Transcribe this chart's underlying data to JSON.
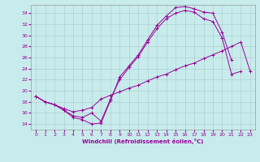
{
  "xlabel": "Windchill (Refroidissement éolien,°C)",
  "background_color": "#c8ecec",
  "grid_color": "#b0d0d0",
  "line_color": "#990099",
  "xlim": [
    -0.5,
    23.5
  ],
  "ylim": [
    13,
    35.5
  ],
  "yticks": [
    14,
    16,
    18,
    20,
    22,
    24,
    26,
    28,
    30,
    32,
    34
  ],
  "xticks": [
    0,
    1,
    2,
    3,
    4,
    5,
    6,
    7,
    8,
    9,
    10,
    11,
    12,
    13,
    14,
    15,
    16,
    17,
    18,
    19,
    20,
    21,
    22,
    23
  ],
  "curve1_x": [
    0,
    1,
    2,
    3,
    4,
    5,
    6,
    7,
    8,
    9,
    10,
    11,
    12,
    13,
    14,
    15,
    16,
    17,
    18,
    19,
    20,
    21
  ],
  "curve1_y": [
    19.0,
    18.0,
    17.5,
    16.5,
    15.2,
    14.8,
    14.0,
    14.2,
    18.2,
    22.5,
    24.5,
    26.5,
    29.2,
    31.8,
    33.5,
    35.0,
    35.2,
    34.8,
    34.2,
    34.0,
    30.5,
    25.5
  ],
  "curve2_x": [
    0,
    1,
    2,
    3,
    4,
    5,
    6,
    7,
    8,
    9,
    10,
    11,
    12,
    13,
    14,
    15,
    16,
    17,
    18,
    19,
    20,
    21,
    22
  ],
  "curve2_y": [
    19.0,
    18.0,
    17.5,
    16.5,
    15.5,
    15.2,
    16.0,
    14.5,
    18.5,
    22.0,
    24.2,
    26.2,
    28.8,
    31.2,
    33.0,
    34.0,
    34.5,
    34.2,
    33.0,
    32.5,
    29.5,
    23.0,
    23.5
  ],
  "curve3_x": [
    0,
    1,
    2,
    3,
    4,
    5,
    6,
    7,
    8,
    9,
    10,
    11,
    12,
    13,
    14,
    15,
    16,
    17,
    18,
    19,
    20,
    21,
    22,
    23
  ],
  "curve3_y": [
    19.0,
    18.0,
    17.5,
    16.8,
    16.2,
    16.5,
    17.0,
    18.5,
    19.2,
    19.8,
    20.5,
    21.0,
    21.8,
    22.5,
    23.0,
    23.8,
    24.5,
    25.0,
    25.8,
    26.5,
    27.2,
    28.0,
    28.8,
    23.5
  ]
}
